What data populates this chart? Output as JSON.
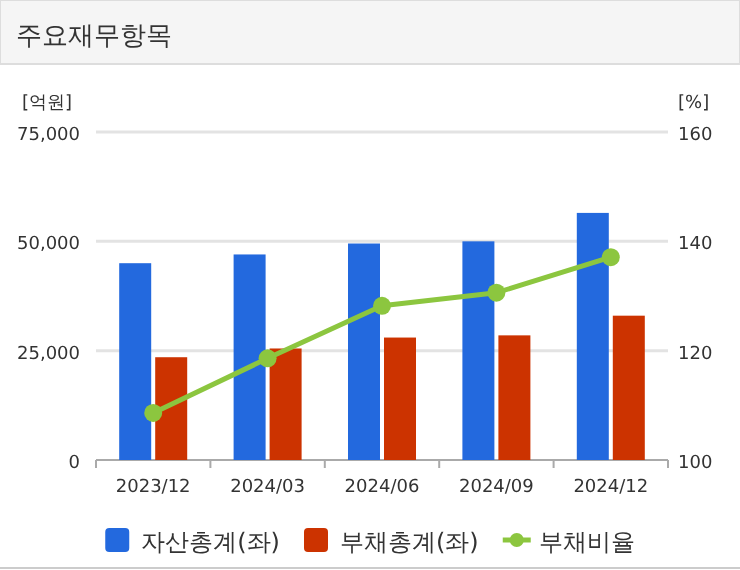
{
  "chart_data": {
    "type": "bar",
    "title": "주요재무항목",
    "ylabel": "[억원]",
    "y2label": "[%]",
    "categories": [
      "2023/12",
      "2024/03",
      "2024/06",
      "2024/09",
      "2024/12"
    ],
    "series": [
      {
        "name": "자산총계(좌)",
        "color": "#2369de",
        "values": [
          45000,
          47000,
          49500,
          50000,
          56500
        ]
      },
      {
        "name": "부채총계(좌)",
        "color": "#cc3300",
        "values": [
          23500,
          25500,
          28000,
          28500,
          33000
        ]
      },
      {
        "name": "부채비율",
        "type": "line",
        "axis": "y2",
        "color": "#8cc63f",
        "values": [
          108.6,
          118.6,
          128.2,
          130.6,
          137.1
        ]
      }
    ],
    "ylim": [
      0,
      75000
    ],
    "yticks": [
      0,
      {
        "value": 25000,
        "label": "25,000"
      },
      {
        "value": 50000,
        "label": "50,000"
      },
      {
        "value": 75000,
        "label": "75,000"
      }
    ],
    "y2lim": [
      100,
      160
    ],
    "y2ticks": [
      100,
      120,
      140,
      160
    ],
    "grid": "y",
    "legend": "bottom",
    "marker": "circle"
  }
}
